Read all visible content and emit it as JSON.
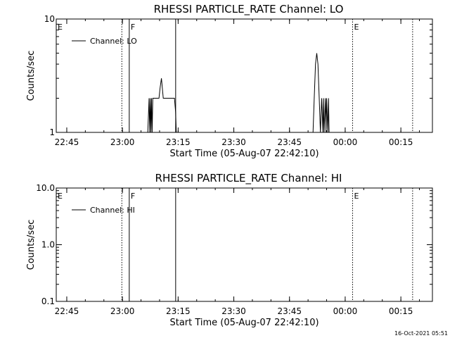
{
  "chart_data": [
    {
      "type": "line",
      "title": "RHESSI PARTICLE_RATE Channel: LO",
      "xlabel": "Start Time (05-Aug-07 22:42:10)",
      "ylabel": "Counts/sec",
      "yscale": "log",
      "ylim": [
        1,
        10
      ],
      "xlim": [
        "22:42:10",
        "00:23:30"
      ],
      "x_ticks": [
        "22:45",
        "23:00",
        "23:15",
        "23:30",
        "23:45",
        "00:00",
        "00:15"
      ],
      "y_ticks": [
        "1",
        "10"
      ],
      "legend": {
        "position": "top-left",
        "entries": [
          "Channel: LO"
        ]
      },
      "markers": [
        {
          "label": "E",
          "time": "22:42:10",
          "style": "none"
        },
        {
          "label": "",
          "time": "22:59:50",
          "style": "dotted"
        },
        {
          "label": "F",
          "time": "23:01:50",
          "style": "solid"
        },
        {
          "label": "",
          "time": "23:14:20",
          "style": "solid"
        },
        {
          "label": "E",
          "time": "00:02:00",
          "style": "dotted"
        },
        {
          "label": "",
          "time": "00:18:10",
          "style": "dotted"
        }
      ],
      "series": [
        {
          "name": "Channel: LO",
          "segments": [
            {
              "x": [
                "23:06:50",
                "23:07:10",
                "23:07:20",
                "23:07:30",
                "23:07:40",
                "23:07:50",
                "23:08:00",
                "23:08:10",
                "23:08:20",
                "23:09:00",
                "23:09:50",
                "23:10:10",
                "23:10:30",
                "23:11:00",
                "23:12:00",
                "23:13:00",
                "23:14:00",
                "23:14:20",
                "23:14:30"
              ],
              "y": [
                1,
                2,
                1,
                2,
                1,
                2,
                1,
                2,
                2,
                2,
                2,
                2.5,
                3,
                2,
                2,
                2,
                2,
                1.5,
                1
              ]
            },
            {
              "x": [
                "23:51:20",
                "23:51:40",
                "23:52:00",
                "23:52:20",
                "23:52:40",
                "23:53:00",
                "23:53:20",
                "23:53:40",
                "23:54:00",
                "23:54:10",
                "23:54:20",
                "23:54:40",
                "23:54:50",
                "23:55:00",
                "23:55:20",
                "23:55:30",
                "23:55:40"
              ],
              "y": [
                1,
                2,
                4,
                5,
                4,
                2,
                1,
                2,
                1,
                2,
                1,
                2,
                1,
                2,
                1,
                2,
                1
              ]
            }
          ]
        }
      ]
    },
    {
      "type": "line",
      "title": "RHESSI PARTICLE_RATE Channel: HI",
      "xlabel": "Start Time (05-Aug-07 22:42:10)",
      "ylabel": "Counts/sec",
      "yscale": "log",
      "ylim": [
        0.1,
        10
      ],
      "xlim": [
        "22:42:10",
        "00:23:30"
      ],
      "x_ticks": [
        "22:45",
        "23:00",
        "23:15",
        "23:30",
        "23:45",
        "00:00",
        "00:15"
      ],
      "y_ticks": [
        "0.1",
        "1.0",
        "10.0"
      ],
      "legend": {
        "position": "top-left",
        "entries": [
          "Channel: HI"
        ]
      },
      "markers": [
        {
          "label": "E",
          "time": "22:42:10",
          "style": "none"
        },
        {
          "label": "",
          "time": "22:59:50",
          "style": "dotted"
        },
        {
          "label": "F",
          "time": "23:01:50",
          "style": "solid"
        },
        {
          "label": "",
          "time": "23:14:20",
          "style": "solid"
        },
        {
          "label": "E",
          "time": "00:02:00",
          "style": "dotted"
        },
        {
          "label": "",
          "time": "00:18:10",
          "style": "dotted"
        }
      ],
      "series": [
        {
          "name": "Channel: HI",
          "segments": []
        }
      ]
    }
  ],
  "footer": {
    "timestamp": "16-Oct-2021 05:51"
  },
  "colors": {
    "background": "#ffffff",
    "ink": "#000000"
  }
}
